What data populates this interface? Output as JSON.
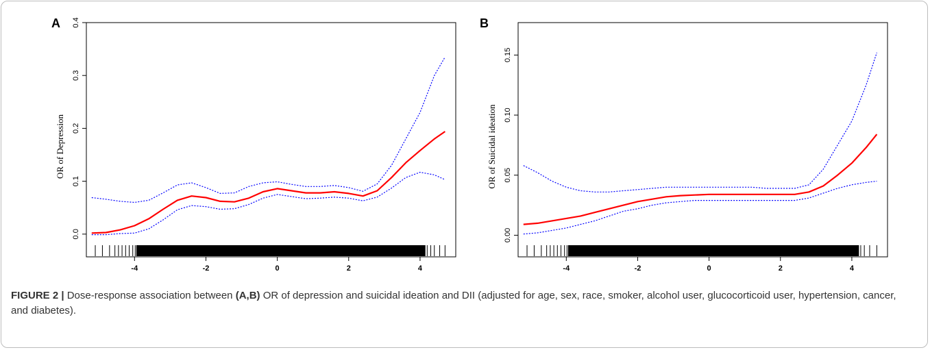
{
  "caption": {
    "label": "FIGURE 2 |",
    "text_before": " Dose-response association between ",
    "bold_ref": "(A,B)",
    "text_after": " OR of depression and suicidal ideation and DII (adjusted for age, sex, race, smoker, alcohol user, glucocorticoid user, hypertension, cancer, and diabetes)."
  },
  "colors": {
    "fit": "#ff0000",
    "ci": "#0000ff",
    "axis": "#000000"
  },
  "chart_data": [
    {
      "panel": "A",
      "type": "line",
      "xlabel": "",
      "ylabel": "OR of  Depression",
      "xlim": [
        -5.35,
        5.0
      ],
      "ylim": [
        -0.043,
        0.4
      ],
      "xticks": [
        -4,
        -2,
        0,
        2,
        4
      ],
      "xtick_labels": [
        "-4",
        "-2",
        "0",
        "2",
        "4"
      ],
      "yticks": [
        0.0,
        0.1,
        0.2,
        0.3,
        0.4
      ],
      "ytick_labels": [
        "0.0",
        "0.1",
        "0.2",
        "0.3",
        "0.4"
      ],
      "x": [
        -5.2,
        -4.8,
        -4.4,
        -4.0,
        -3.6,
        -3.2,
        -2.8,
        -2.4,
        -2.0,
        -1.6,
        -1.2,
        -0.8,
        -0.4,
        0.0,
        0.4,
        0.8,
        1.2,
        1.6,
        2.0,
        2.4,
        2.8,
        3.2,
        3.6,
        4.0,
        4.4,
        4.7
      ],
      "series": [
        {
          "name": "OR",
          "style": "solid",
          "values": [
            0.002,
            0.003,
            0.008,
            0.016,
            0.029,
            0.047,
            0.064,
            0.072,
            0.069,
            0.062,
            0.061,
            0.068,
            0.08,
            0.086,
            0.082,
            0.078,
            0.078,
            0.08,
            0.077,
            0.072,
            0.082,
            0.107,
            0.135,
            0.158,
            0.18,
            0.194
          ]
        },
        {
          "name": "Upper 95% CI",
          "style": "dotted",
          "values": [
            0.069,
            0.066,
            0.062,
            0.06,
            0.064,
            0.078,
            0.093,
            0.097,
            0.088,
            0.077,
            0.078,
            0.09,
            0.097,
            0.099,
            0.094,
            0.09,
            0.09,
            0.092,
            0.088,
            0.081,
            0.095,
            0.13,
            0.18,
            0.23,
            0.3,
            0.335
          ]
        },
        {
          "name": "Lower 95% CI",
          "style": "dotted",
          "values": [
            -0.001,
            -0.001,
            0.001,
            0.002,
            0.01,
            0.027,
            0.046,
            0.054,
            0.052,
            0.047,
            0.048,
            0.056,
            0.068,
            0.075,
            0.071,
            0.067,
            0.068,
            0.07,
            0.068,
            0.063,
            0.07,
            0.087,
            0.107,
            0.117,
            0.112,
            0.103
          ]
        }
      ],
      "rug_left_ticks": [
        -5.1,
        -4.9,
        -4.7,
        -4.55,
        -4.45,
        -4.35,
        -4.25,
        -4.15,
        -4.05,
        -3.98
      ],
      "rug_dense_range": [
        -3.95,
        4.15
      ],
      "rug_right_ticks": [
        4.2,
        4.3,
        4.4,
        4.55,
        4.7
      ]
    },
    {
      "panel": "B",
      "type": "line",
      "xlabel": "",
      "ylabel": "OR of Suicidal ideation",
      "xlim": [
        -5.35,
        5.0
      ],
      "ylim": [
        -0.018,
        0.177
      ],
      "xticks": [
        -4,
        -2,
        0,
        2,
        4
      ],
      "xtick_labels": [
        "-4",
        "-2",
        "0",
        "2",
        "4"
      ],
      "yticks": [
        0.0,
        0.05,
        0.1,
        0.15
      ],
      "ytick_labels": [
        "0.00",
        "0.05",
        "0.10",
        "0.15"
      ],
      "x": [
        -5.2,
        -4.8,
        -4.4,
        -4.0,
        -3.6,
        -3.2,
        -2.8,
        -2.4,
        -2.0,
        -1.6,
        -1.2,
        -0.8,
        -0.4,
        0.0,
        0.4,
        0.8,
        1.2,
        1.6,
        2.0,
        2.4,
        2.8,
        3.2,
        3.6,
        4.0,
        4.4,
        4.7
      ],
      "series": [
        {
          "name": "OR",
          "style": "solid",
          "values": [
            0.009,
            0.01,
            0.012,
            0.014,
            0.016,
            0.019,
            0.022,
            0.025,
            0.028,
            0.03,
            0.032,
            0.033,
            0.0335,
            0.034,
            0.034,
            0.034,
            0.034,
            0.034,
            0.034,
            0.034,
            0.036,
            0.041,
            0.05,
            0.06,
            0.073,
            0.084
          ]
        },
        {
          "name": "Upper 95% CI",
          "style": "dotted",
          "values": [
            0.058,
            0.052,
            0.045,
            0.04,
            0.037,
            0.036,
            0.036,
            0.037,
            0.038,
            0.039,
            0.04,
            0.04,
            0.04,
            0.04,
            0.04,
            0.04,
            0.04,
            0.039,
            0.039,
            0.039,
            0.042,
            0.055,
            0.075,
            0.095,
            0.125,
            0.152
          ]
        },
        {
          "name": "Lower 95% CI",
          "style": "dotted",
          "values": [
            0.001,
            0.002,
            0.004,
            0.006,
            0.009,
            0.012,
            0.016,
            0.02,
            0.022,
            0.025,
            0.027,
            0.028,
            0.029,
            0.029,
            0.029,
            0.029,
            0.029,
            0.029,
            0.029,
            0.029,
            0.031,
            0.035,
            0.039,
            0.042,
            0.044,
            0.045
          ]
        }
      ],
      "rug_left_ticks": [
        -5.1,
        -4.9,
        -4.7,
        -4.55,
        -4.45,
        -4.35,
        -4.25,
        -4.15,
        -4.05,
        -3.98
      ],
      "rug_dense_range": [
        -3.95,
        4.2
      ],
      "rug_right_ticks": [
        4.25,
        4.35,
        4.5,
        4.7
      ]
    }
  ]
}
